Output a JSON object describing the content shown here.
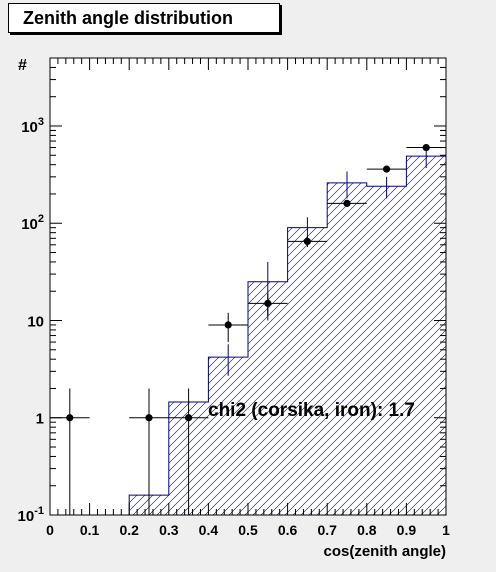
{
  "chart_data": {
    "type": "histogram",
    "title": "Zenith angle distribution",
    "xlabel": "cos(zenith angle)",
    "ylabel": "#",
    "annotation": "chi2 (corsika, iron): 1.7",
    "xlim": [
      0,
      1
    ],
    "ylim": [
      0.1,
      5000
    ],
    "log_y": true,
    "grid": false,
    "x_ticks": [
      "0",
      "0.1",
      "0.2",
      "0.3",
      "0.4",
      "0.5",
      "0.6",
      "0.7",
      "0.8",
      "0.9",
      "1"
    ],
    "y_ticks": [
      {
        "value": 0.1,
        "base": "10",
        "exp": "-1"
      },
      {
        "value": 1,
        "base": "1",
        "exp": ""
      },
      {
        "value": 10,
        "base": "10",
        "exp": ""
      },
      {
        "value": 100,
        "base": "10",
        "exp": "2"
      },
      {
        "value": 1000,
        "base": "10",
        "exp": "3"
      }
    ],
    "bin_edges": [
      0,
      0.1,
      0.2,
      0.3,
      0.4,
      0.5,
      0.6,
      0.7,
      0.8,
      0.9,
      1.0
    ],
    "simulation": {
      "values": [
        0,
        0,
        0.16,
        1.45,
        4.2,
        25,
        90,
        260,
        240,
        490
      ],
      "errors": [
        0,
        0,
        0,
        0,
        1.5,
        15,
        25,
        80,
        60,
        120
      ],
      "color": "#00008b"
    },
    "data_points": {
      "x": [
        0.05,
        0.25,
        0.35,
        0.45,
        0.55,
        0.65,
        0.75,
        0.85,
        0.95
      ],
      "y": [
        1,
        1,
        1,
        9,
        15,
        65,
        160,
        360,
        600
      ],
      "color": "#000000"
    }
  }
}
